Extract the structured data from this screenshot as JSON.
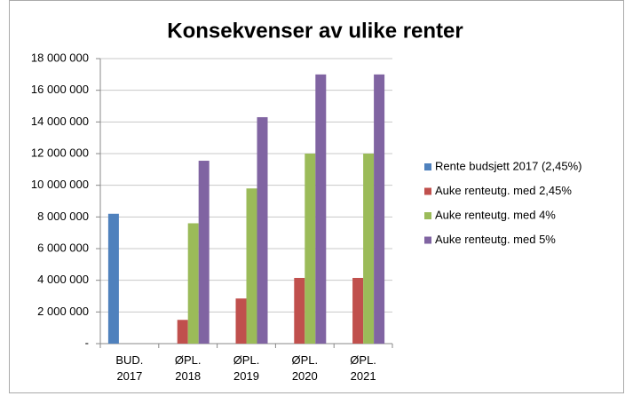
{
  "chart_data": {
    "type": "bar",
    "title": "Konsekvenser av ulike renter",
    "categories": [
      "BUD. 2017",
      "ØPL. 2018",
      "ØPL. 2019",
      "ØPL. 2020",
      "ØPL. 2021"
    ],
    "series": [
      {
        "name": "Rente budsjett 2017 (2,45%)",
        "color": "#4f81bd",
        "values": [
          8200000,
          null,
          null,
          null,
          null
        ]
      },
      {
        "name": "Auke renteutg. med 2,45%",
        "color": "#c0504d",
        "values": [
          null,
          1500000,
          2850000,
          4150000,
          4150000
        ]
      },
      {
        "name": "Auke renteutg. med 4%",
        "color": "#9bbb59",
        "values": [
          null,
          7600000,
          9800000,
          12000000,
          12000000
        ]
      },
      {
        "name": "Auke renteutg. med 5%",
        "color": "#8064a2",
        "values": [
          null,
          11550000,
          14300000,
          17000000,
          17000000
        ]
      }
    ],
    "ylim": [
      0,
      18000000
    ],
    "yticks": [
      {
        "value": 0,
        "label": "-"
      },
      {
        "value": 2000000,
        "label": "2 000 000"
      },
      {
        "value": 4000000,
        "label": "4 000 000"
      },
      {
        "value": 6000000,
        "label": "6 000 000"
      },
      {
        "value": 8000000,
        "label": "8 000 000"
      },
      {
        "value": 10000000,
        "label": "10 000 000"
      },
      {
        "value": 12000000,
        "label": "12 000 000"
      },
      {
        "value": 14000000,
        "label": "14 000 000"
      },
      {
        "value": 16000000,
        "label": "16 000 000"
      },
      {
        "value": 18000000,
        "label": "18 000 000"
      }
    ],
    "grid": true,
    "legend": "right"
  }
}
